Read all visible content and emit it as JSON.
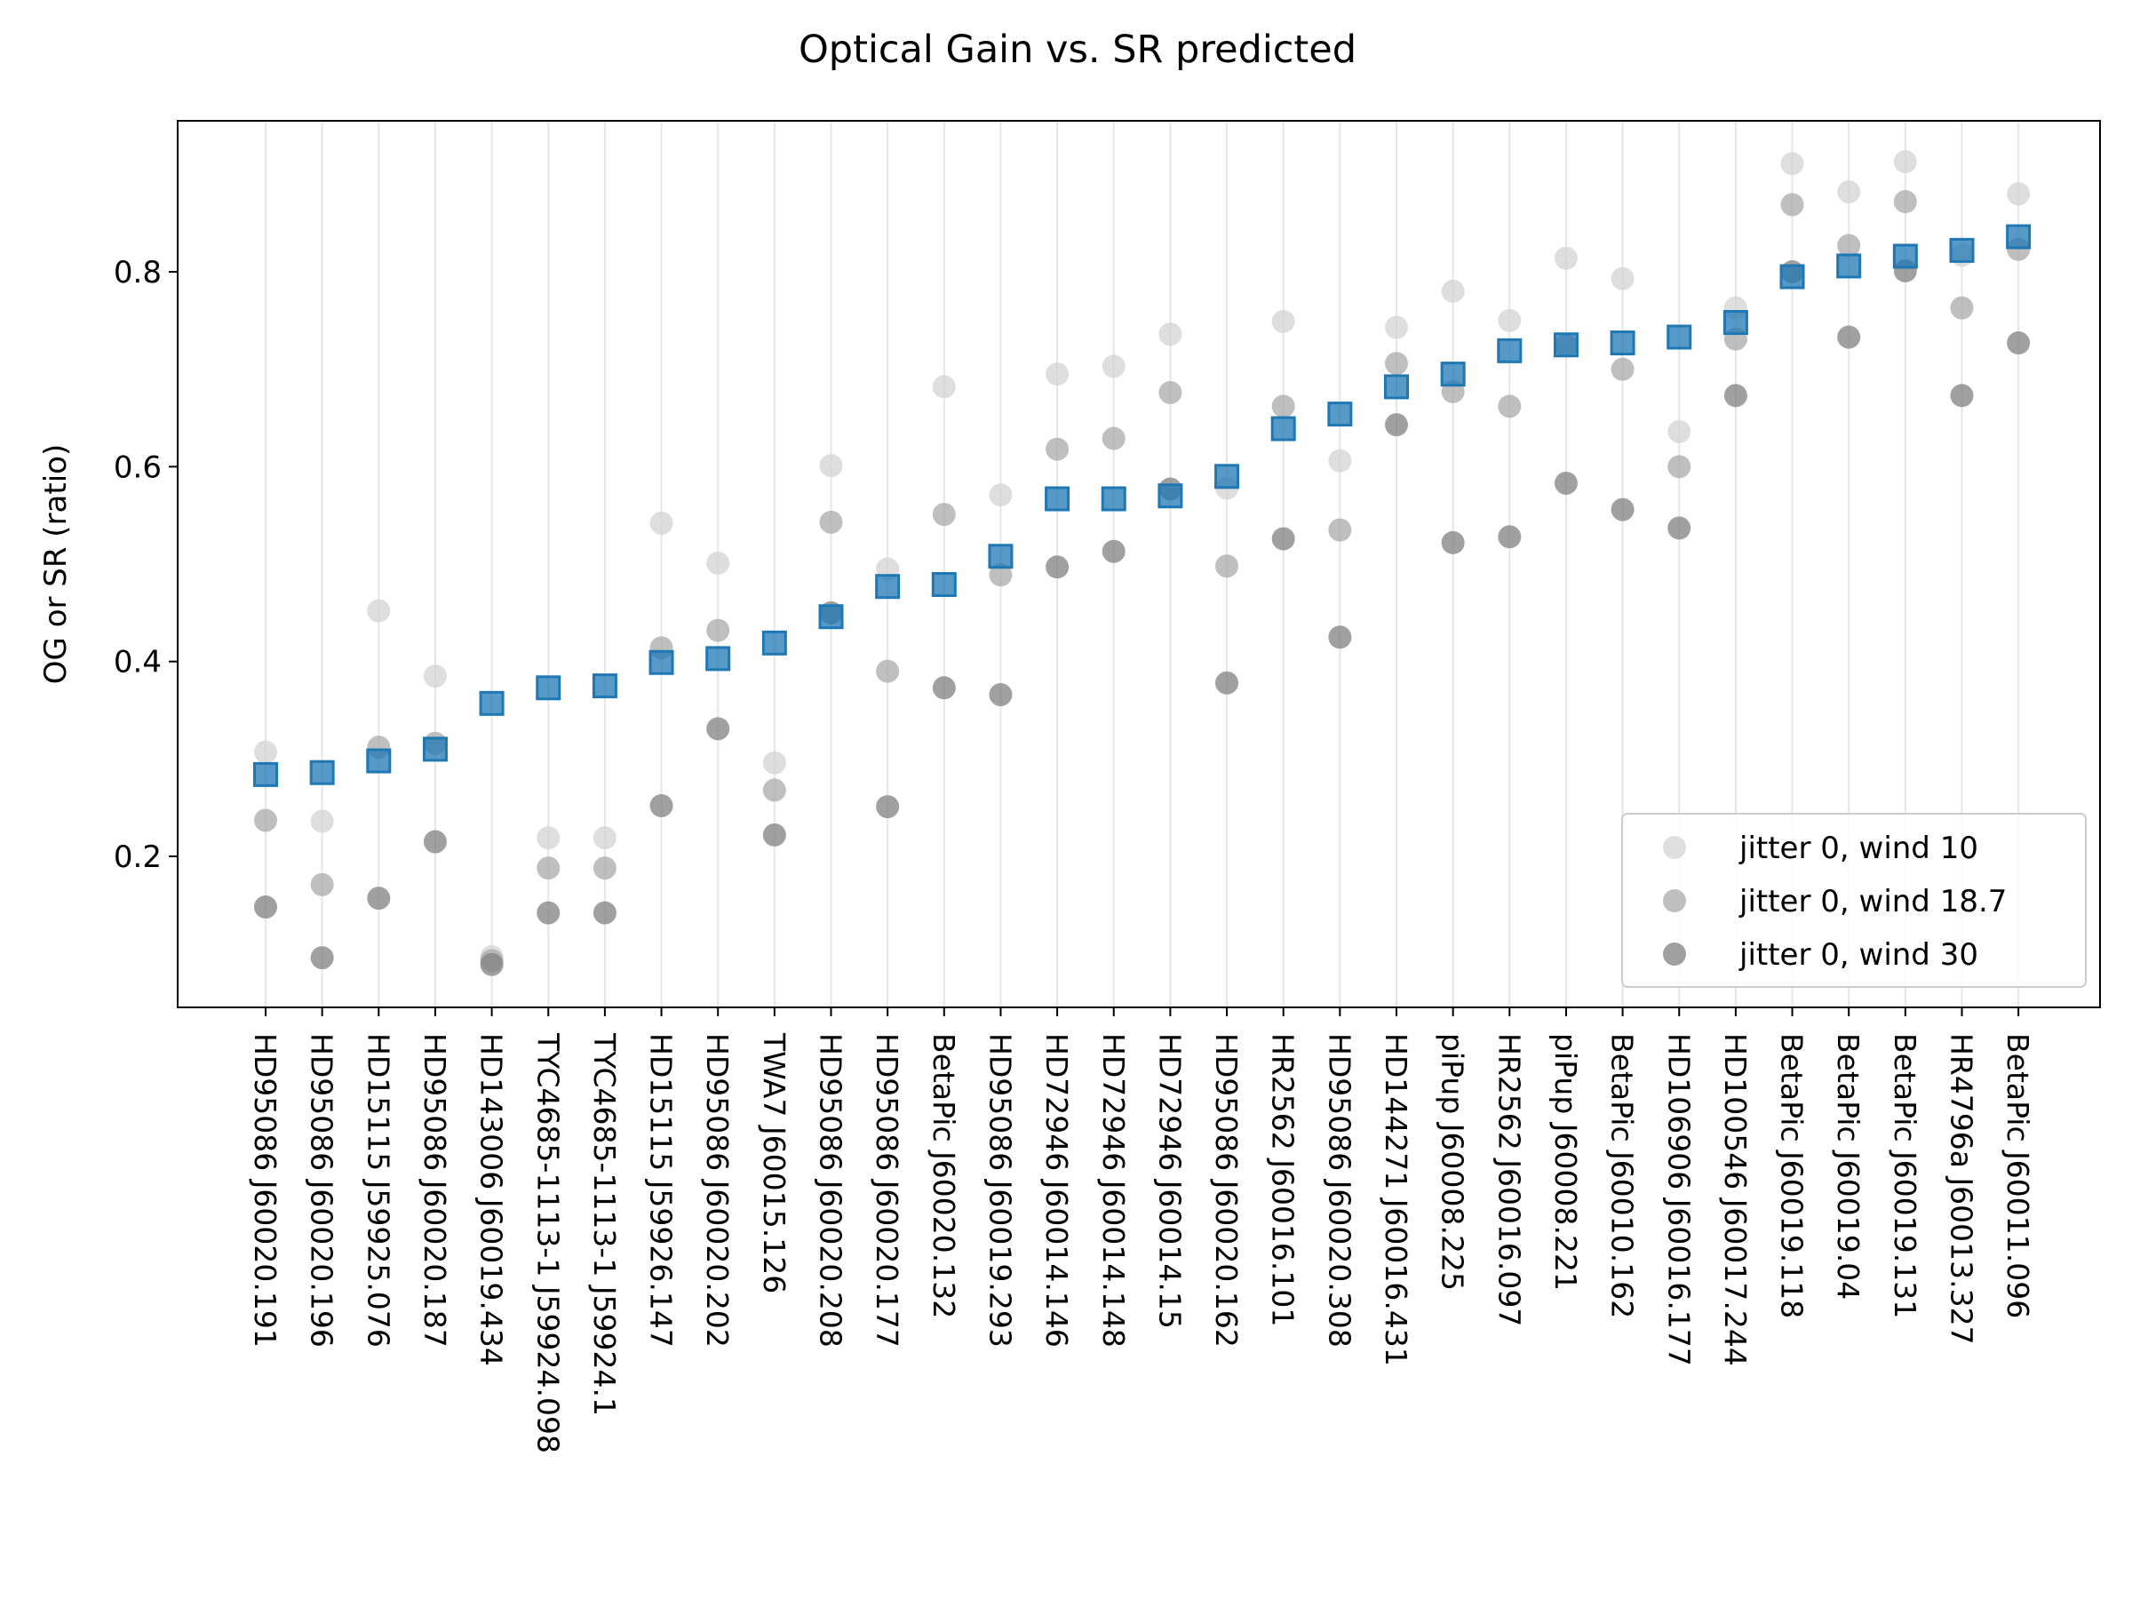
{
  "chart_data": {
    "type": "scatter",
    "title": "Optical Gain vs. SR predicted",
    "xlabel": "",
    "ylabel": "OG or SR (ratio)",
    "ylim": [
      0.045,
      0.955
    ],
    "yticks": [
      "0.2",
      "0.4",
      "0.6",
      "0.8"
    ],
    "grid": "vertical",
    "legend_position": "lower-right",
    "categories": [
      "HD95086 J60020.191",
      "HD95086 J60020.196",
      "HD15115 J59925.076",
      "HD95086 J60020.187",
      "HD143006 J60019.434",
      "TYC4685-1113-1 J59924.098",
      "TYC4685-1113-1 J59924.1",
      "HD15115 J59926.147",
      "HD95086 J60020.202",
      "TWA7 J60015.126",
      "HD95086 J60020.208",
      "HD95086 J60020.177",
      "BetaPic J60020.132",
      "HD95086 J60019.293",
      "HD72946 J60014.146",
      "HD72946 J60014.148",
      "HD72946 J60014.15",
      "HD95086 J60020.162",
      "HR2562 J60016.101",
      "HD95086 J60020.308",
      "HD144271 J60016.431",
      "piPup J60008.225",
      "HR2562 J60016.097",
      "piPup J60008.221",
      "BetaPic J60010.162",
      "HD106906 J60016.177",
      "HD100546 J60017.244",
      "BetaPic J60019.118",
      "BetaPic J60019.04",
      "BetaPic J60019.131",
      "HR4796a J60013.327",
      "BetaPic J60011.096"
    ],
    "series": [
      {
        "name": "jitter 0, wind 10",
        "color": "#d3d3d3",
        "values": [
          0.307,
          0.236,
          0.452,
          0.385,
          0.097,
          0.219,
          0.219,
          0.542,
          0.501,
          0.296,
          0.601,
          0.495,
          0.682,
          0.571,
          0.695,
          0.703,
          0.736,
          0.578,
          0.749,
          0.606,
          0.743,
          0.78,
          0.75,
          0.814,
          0.793,
          0.636,
          0.763,
          0.911,
          0.882,
          0.913,
          0.817,
          0.88
        ]
      },
      {
        "name": "jitter 0, wind 18.7",
        "color": "#a9a9a9",
        "values": [
          0.237,
          0.171,
          0.312,
          0.316,
          0.093,
          0.188,
          0.188,
          0.414,
          0.432,
          0.268,
          0.543,
          0.39,
          0.551,
          0.489,
          0.618,
          0.629,
          0.676,
          0.498,
          0.662,
          0.535,
          0.706,
          0.677,
          0.662,
          0.724,
          0.7,
          0.6,
          0.731,
          0.869,
          0.827,
          0.872,
          0.763,
          0.823
        ]
      },
      {
        "name": "jitter 0, wind 30",
        "color": "#808080",
        "values": [
          0.148,
          0.096,
          0.157,
          0.215,
          0.089,
          0.142,
          0.142,
          0.252,
          0.331,
          0.222,
          0.45,
          0.251,
          0.373,
          0.366,
          0.497,
          0.513,
          0.577,
          0.378,
          0.526,
          0.425,
          0.643,
          0.522,
          0.528,
          0.583,
          0.556,
          0.537,
          0.673,
          0.8,
          0.733,
          0.801,
          0.673,
          0.727
        ]
      },
      {
        "name": "SR predicted",
        "color": "#1f77b4",
        "values": [
          0.284,
          0.286,
          0.298,
          0.31,
          0.357,
          0.373,
          0.375,
          0.399,
          0.403,
          0.419,
          0.446,
          0.477,
          0.479,
          0.508,
          0.567,
          0.567,
          0.57,
          0.59,
          0.639,
          0.654,
          0.682,
          0.695,
          0.719,
          0.725,
          0.727,
          0.733,
          0.748,
          0.795,
          0.806,
          0.816,
          0.822,
          0.836
        ]
      }
    ]
  }
}
